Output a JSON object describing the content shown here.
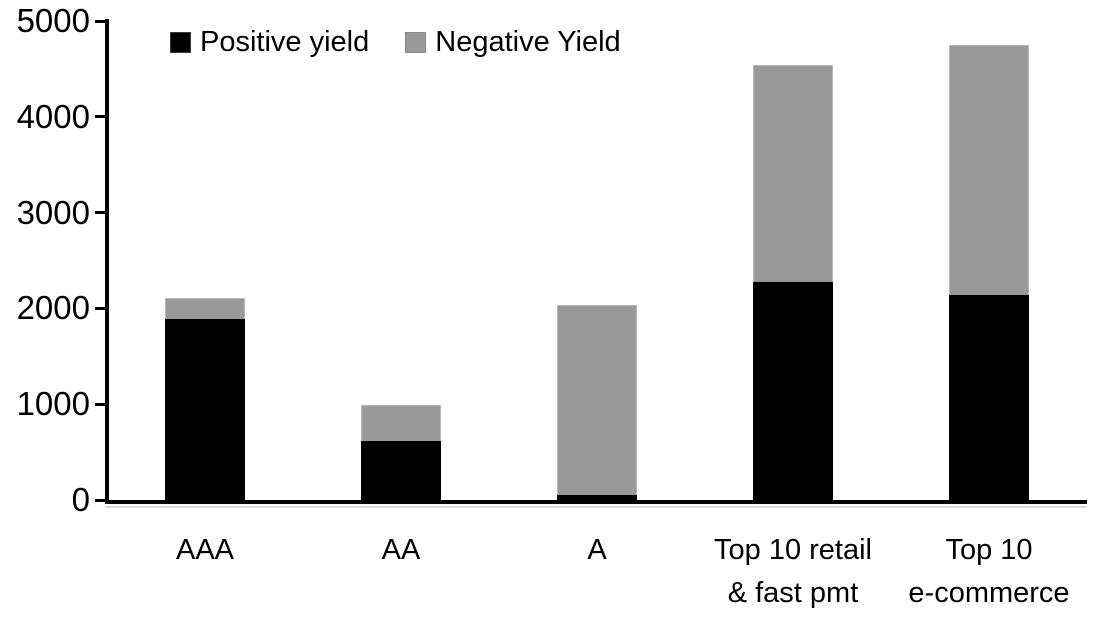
{
  "chart_data": {
    "type": "bar",
    "stacked": true,
    "title": "",
    "xlabel": "",
    "ylabel": "",
    "categories": [
      "AAA",
      "AA",
      "A",
      "Top 10 retail\n& fast pmt",
      "Top 10\ne-commerce"
    ],
    "series": [
      {
        "name": "Positive yield",
        "color": "#000000",
        "values": [
          1890,
          620,
          50,
          2280,
          2140
        ]
      },
      {
        "name": "Negative Yield",
        "color": "#999999",
        "values": [
          220,
          380,
          1980,
          2270,
          2610
        ]
      }
    ],
    "stack_totals": [
      2110,
      1000,
      2030,
      4550,
      4750
    ],
    "ylim": [
      0,
      5000
    ],
    "yticks": [
      0,
      1000,
      2000,
      3000,
      4000,
      5000
    ],
    "grid": false,
    "legend_position": "top-left"
  },
  "colors": {
    "positive": "#000000",
    "negative": "#999999",
    "axis": "#000000",
    "background": "#ffffff"
  }
}
